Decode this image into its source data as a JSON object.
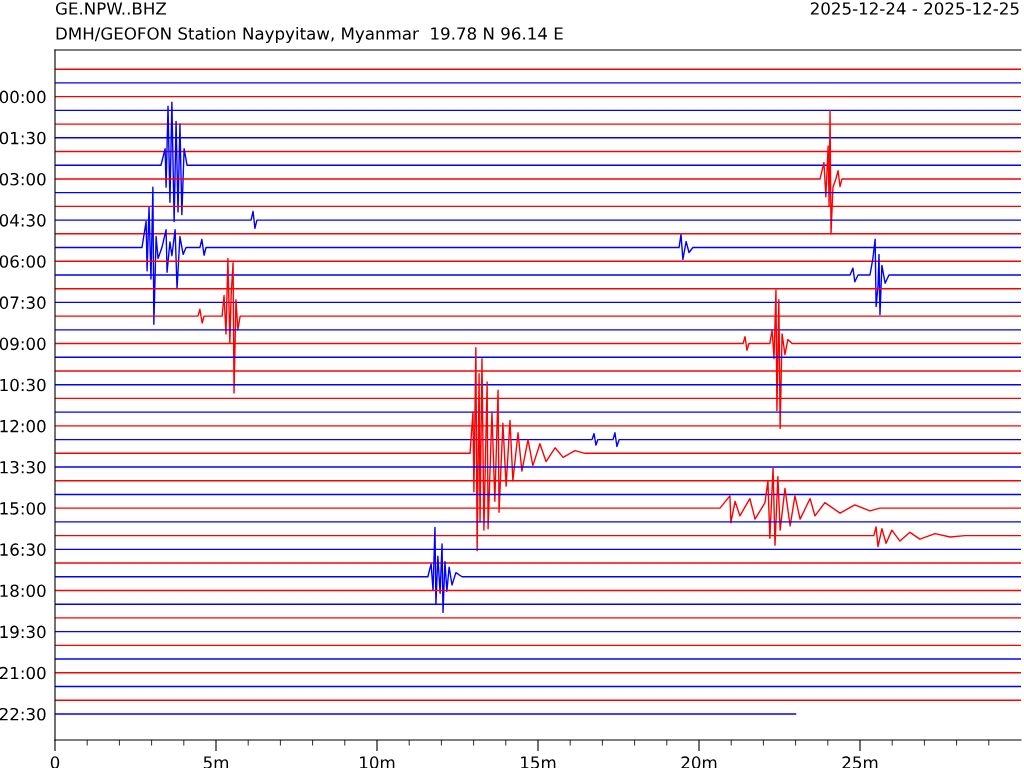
{
  "chart_data": {
    "type": "line",
    "title": "GE.NPW..BHZ",
    "subtitle": "DMH/GEOFON Station Naypyitaw, Myanmar  19.78 N 96.14 E",
    "annotations": [
      "2025-12-24 - 2025-12-25"
    ],
    "xlim": [
      0,
      30
    ],
    "ylim": [
      23.45,
      -1.7
    ],
    "grid": false,
    "legend": false,
    "marker": "none",
    "line_style": "solid",
    "xticks": [
      0,
      {
        "value": 1,
        "label": null
      },
      {
        "value": 2,
        "label": null
      },
      {
        "value": 3,
        "label": null
      },
      {
        "value": 4,
        "label": null
      },
      {
        "value": 5,
        "label": "5m"
      },
      {
        "value": 6,
        "label": null
      },
      {
        "value": 7,
        "label": null
      },
      {
        "value": 8,
        "label": null
      },
      {
        "value": 9,
        "label": null
      },
      {
        "value": 10,
        "label": "10m"
      },
      {
        "value": 11,
        "label": null
      },
      {
        "value": 12,
        "label": null
      },
      {
        "value": 13,
        "label": null
      },
      {
        "value": 14,
        "label": null
      },
      {
        "value": 15,
        "label": "15m"
      },
      {
        "value": 16,
        "label": null
      },
      {
        "value": 17,
        "label": null
      },
      {
        "value": 18,
        "label": null
      },
      {
        "value": 19,
        "label": null
      },
      {
        "value": 20,
        "label": "20m"
      },
      {
        "value": 21,
        "label": null
      },
      {
        "value": 22,
        "label": null
      },
      {
        "value": 23,
        "label": null
      },
      {
        "value": 24,
        "label": null
      },
      {
        "value": 25,
        "label": "25m"
      },
      {
        "value": 26,
        "label": null
      },
      {
        "value": 27,
        "label": null
      },
      {
        "value": 28,
        "label": null
      },
      {
        "value": 29,
        "label": null
      }
    ],
    "yticks": [
      {
        "value": 0,
        "label": "00:00"
      },
      {
        "value": 1.5,
        "label": "01:30"
      },
      {
        "value": 3,
        "label": "03:00"
      },
      {
        "value": 4.5,
        "label": "04:30"
      },
      {
        "value": 6,
        "label": "06:00"
      },
      {
        "value": 7.5,
        "label": "07:30"
      },
      {
        "value": 9,
        "label": "09:00"
      },
      {
        "value": 10.5,
        "label": "10:30"
      },
      {
        "value": 12,
        "label": "12:00"
      },
      {
        "value": 13.5,
        "label": "13:30"
      },
      {
        "value": 15,
        "label": "15:00"
      },
      {
        "value": 16.5,
        "label": "16:30"
      },
      {
        "value": 18,
        "label": "18:00"
      },
      {
        "value": 19.5,
        "label": "19:30"
      },
      {
        "value": 21,
        "label": "21:00"
      },
      {
        "value": 22.5,
        "label": "22:30"
      }
    ],
    "series": [
      {
        "color": "#ff0000",
        "x": [
          0,
          30
        ],
        "values": [
          -1,
          -1
        ]
      },
      {
        "color": "#0000ff",
        "x": [
          0,
          30
        ],
        "values": [
          -0.5,
          -0.5
        ]
      },
      {
        "color": "#ff0000",
        "x": [
          0,
          30
        ],
        "values": [
          0,
          0
        ]
      },
      {
        "color": "#0000ff",
        "x": [
          0,
          30
        ],
        "values": [
          0.5,
          0.5
        ]
      },
      {
        "color": "#ff0000",
        "x": [
          0,
          30
        ],
        "values": [
          1,
          1
        ]
      },
      {
        "color": "#0000ff",
        "x": [
          0,
          30
        ],
        "values": [
          1.5,
          1.5
        ]
      },
      {
        "color": "#ff0000",
        "x": [
          0,
          30
        ],
        "values": [
          2,
          2
        ]
      },
      {
        "color": "#0000ff",
        "x": [
          0,
          3.29,
          3.42,
          3.45,
          3.51,
          3.57,
          3.63,
          3.7,
          3.76,
          3.82,
          3.88,
          3.94,
          4.01,
          4.1,
          30
        ],
        "values": [
          2.5,
          2.5,
          1.9,
          3.3,
          0.35,
          3.85,
          0.2,
          4.55,
          0.9,
          4.2,
          1.0,
          4.3,
          1.9,
          2.5,
          2.5
        ]
      },
      {
        "color": "#ff0000",
        "x": [
          0,
          23.76,
          23.88,
          23.94,
          24.01,
          24.04,
          24.07,
          24.1,
          24.16,
          24.25,
          24.32,
          24.38,
          24.44,
          30
        ],
        "values": [
          3,
          3,
          2.4,
          3.65,
          1.8,
          4.0,
          0.5,
          5.0,
          3.3,
          3,
          2.7,
          3.28,
          3,
          3
        ]
      },
      {
        "color": "#0000ff",
        "x": [
          0,
          30
        ],
        "values": [
          3.5,
          3.5
        ]
      },
      {
        "color": "#ff0000",
        "x": [
          0,
          30
        ],
        "values": [
          4,
          4
        ]
      },
      {
        "color": "#0000ff",
        "x": [
          0,
          6.09,
          6.15,
          6.21,
          6.27,
          30
        ],
        "values": [
          4.5,
          4.5,
          4.18,
          4.8,
          4.5,
          4.5
        ]
      },
      {
        "color": "#ff0000",
        "x": [
          0,
          30
        ],
        "values": [
          5,
          5
        ]
      },
      {
        "color": "#0000ff",
        "x": [
          0,
          2.7,
          2.83,
          2.86,
          2.92,
          2.98,
          3.04,
          3.07,
          3.14,
          3.2,
          3.32,
          3.45,
          3.48,
          3.57,
          3.63,
          3.73,
          3.79,
          3.88,
          3.98,
          4.07,
          4.5,
          4.56,
          4.63,
          4.69,
          19.38,
          19.44,
          19.5,
          19.6,
          19.69,
          19.81,
          20.03,
          30
        ],
        "values": [
          5.5,
          5.5,
          4.55,
          6.35,
          4.03,
          6.65,
          3.3,
          8.3,
          5.1,
          5.9,
          5.5,
          4.85,
          6.4,
          5.3,
          5.8,
          4.85,
          7.0,
          5.1,
          5.75,
          5.5,
          5.5,
          5.2,
          5.78,
          5.5,
          5.5,
          5.03,
          5.93,
          5.28,
          5.68,
          5.5,
          5.5,
          5.5
        ]
      },
      {
        "color": "#ff0000",
        "x": [
          0,
          30
        ],
        "values": [
          6,
          6
        ]
      },
      {
        "color": "#0000ff",
        "x": [
          0,
          24.69,
          24.78,
          24.84,
          24.94,
          25.31,
          25.4,
          25.47,
          25.5,
          25.56,
          25.59,
          25.62,
          25.68,
          25.78,
          25.9,
          30
        ],
        "values": [
          6.5,
          6.5,
          6.25,
          6.75,
          6.5,
          6.5,
          5.9,
          5.2,
          7.65,
          6.9,
          5.75,
          7.95,
          6.15,
          6.8,
          6.5,
          6.5
        ]
      },
      {
        "color": "#ff0000",
        "x": [
          0,
          30
        ],
        "values": [
          7,
          7
        ]
      },
      {
        "color": "#0000ff",
        "x": [
          0,
          30
        ],
        "values": [
          7.5,
          7.5
        ]
      },
      {
        "color": "#ff0000",
        "x": [
          0,
          4.44,
          4.5,
          4.57,
          4.63,
          5.19,
          5.25,
          5.31,
          5.37,
          5.43,
          5.47,
          5.53,
          5.56,
          5.62,
          5.68,
          5.75,
          30
        ],
        "values": [
          8,
          8,
          7.75,
          8.25,
          8,
          8,
          7.25,
          8.65,
          5.9,
          9.0,
          7.25,
          6.05,
          10.8,
          7.4,
          8.5,
          8,
          8
        ]
      },
      {
        "color": "#0000ff",
        "x": [
          0,
          30
        ],
        "values": [
          8.5,
          8.5
        ]
      },
      {
        "color": "#ff0000",
        "x": [
          0,
          21.37,
          21.43,
          21.49,
          21.55,
          22.2,
          22.27,
          22.33,
          22.39,
          22.42,
          22.48,
          22.52,
          22.58,
          22.67,
          22.76,
          22.89,
          30
        ],
        "values": [
          9,
          9,
          8.75,
          9.25,
          9,
          9,
          8.5,
          9.55,
          7.05,
          11.45,
          7.4,
          12.1,
          8.65,
          9.4,
          8.85,
          9,
          9
        ]
      },
      {
        "color": "#0000ff",
        "x": [
          0,
          30
        ],
        "values": [
          9.5,
          9.5
        ]
      },
      {
        "color": "#ff0000",
        "x": [
          0,
          30
        ],
        "values": [
          10,
          10
        ]
      },
      {
        "color": "#0000ff",
        "x": [
          0,
          30
        ],
        "values": [
          10.5,
          10.5
        ]
      },
      {
        "color": "#ff0000",
        "x": [
          0,
          30
        ],
        "values": [
          11,
          11
        ]
      },
      {
        "color": "#0000ff",
        "x": [
          0,
          30
        ],
        "values": [
          11.5,
          11.5
        ]
      },
      {
        "color": "#ff0000",
        "x": [
          0,
          30
        ],
        "values": [
          12,
          12
        ]
      },
      {
        "color": "#0000ff",
        "x": [
          0,
          16.68,
          16.74,
          16.8,
          16.86,
          17.33,
          17.39,
          17.45,
          17.52,
          30
        ],
        "values": [
          12.5,
          12.5,
          12.28,
          12.7,
          12.5,
          12.5,
          12.25,
          12.75,
          12.5,
          12.5
        ]
      },
      {
        "color": "#ff0000",
        "x": [
          0,
          12.89,
          12.98,
          13.01,
          13.07,
          13.11,
          13.17,
          13.2,
          13.26,
          13.32,
          13.42,
          13.45,
          13.57,
          13.66,
          13.76,
          13.79,
          13.91,
          14.01,
          14.13,
          14.22,
          14.38,
          14.5,
          14.69,
          14.84,
          15.06,
          15.25,
          15.53,
          15.78,
          16.15,
          16.46,
          30
        ],
        "values": [
          13,
          13,
          11.5,
          14.4,
          9.15,
          16.55,
          10.1,
          15.5,
          9.55,
          15.8,
          10.4,
          15.75,
          11.5,
          14.75,
          10.7,
          15.15,
          11.9,
          14.2,
          11.8,
          14.0,
          12.25,
          13.65,
          12.5,
          13.45,
          12.65,
          13.3,
          12.8,
          13.15,
          12.9,
          13,
          13
        ]
      },
      {
        "color": "#0000ff",
        "x": [
          0,
          30
        ],
        "values": [
          13.5,
          13.5
        ]
      },
      {
        "color": "#ff0000",
        "x": [
          0,
          30
        ],
        "values": [
          14,
          14
        ]
      },
      {
        "color": "#0000ff",
        "x": [
          0,
          30
        ],
        "values": [
          14.5,
          14.5
        ]
      },
      {
        "color": "#ff0000",
        "x": [
          0,
          20.65,
          20.96,
          20.99,
          21.12,
          21.27,
          21.58,
          21.74,
          22.05,
          22.14,
          22.2,
          22.3,
          22.36,
          22.45,
          22.52,
          22.67,
          22.83,
          22.98,
          23.14,
          23.45,
          23.6,
          23.91,
          24.38,
          24.84,
          25.31,
          25.62,
          30
        ],
        "values": [
          15,
          15,
          14.55,
          15.53,
          14.75,
          15.28,
          14.65,
          15.4,
          14.8,
          14.0,
          16.1,
          13.53,
          16.35,
          13.85,
          15.8,
          14.28,
          15.65,
          14.55,
          15.4,
          14.65,
          15.28,
          14.8,
          15.18,
          14.88,
          15.1,
          15,
          15
        ]
      },
      {
        "color": "#0000ff",
        "x": [
          0,
          30
        ],
        "values": [
          15.5,
          15.5
        ]
      },
      {
        "color": "#ff0000",
        "x": [
          0,
          25.43,
          25.5,
          25.56,
          25.68,
          25.81,
          25.99,
          26.24,
          26.55,
          26.86,
          27.33,
          27.8,
          28.26,
          30
        ],
        "values": [
          16,
          16,
          15.68,
          16.4,
          15.75,
          16.28,
          15.8,
          16.2,
          15.88,
          16.13,
          15.93,
          16.05,
          16,
          16
        ]
      },
      {
        "color": "#0000ff",
        "x": [
          0,
          30
        ],
        "values": [
          16.5,
          16.5
        ]
      },
      {
        "color": "#ff0000",
        "x": [
          0,
          30
        ],
        "values": [
          17,
          17
        ]
      },
      {
        "color": "#0000ff",
        "x": [
          0,
          11.58,
          11.68,
          11.74,
          11.8,
          11.83,
          11.89,
          11.96,
          12.02,
          12.05,
          12.11,
          12.17,
          12.24,
          12.33,
          12.45,
          12.64,
          30
        ],
        "values": [
          17.5,
          17.5,
          17.03,
          17.99,
          15.7,
          18.5,
          16.75,
          18.1,
          16.3,
          18.8,
          16.95,
          18.03,
          17.15,
          17.8,
          17.35,
          17.5,
          17.5
        ]
      },
      {
        "color": "#ff0000",
        "x": [
          0,
          30
        ],
        "values": [
          18,
          18
        ]
      },
      {
        "color": "#0000ff",
        "x": [
          0,
          30
        ],
        "values": [
          18.5,
          18.5
        ]
      },
      {
        "color": "#ff0000",
        "x": [
          0,
          30
        ],
        "values": [
          19,
          19
        ]
      },
      {
        "color": "#0000ff",
        "x": [
          0,
          30
        ],
        "values": [
          19.5,
          19.5
        ]
      },
      {
        "color": "#ff0000",
        "x": [
          0,
          30
        ],
        "values": [
          20,
          20
        ]
      },
      {
        "color": "#0000ff",
        "x": [
          0,
          30
        ],
        "values": [
          20.5,
          20.5
        ]
      },
      {
        "color": "#ff0000",
        "x": [
          0,
          30
        ],
        "values": [
          21,
          21
        ]
      },
      {
        "color": "#0000ff",
        "x": [
          0,
          30
        ],
        "values": [
          21.5,
          21.5
        ]
      },
      {
        "color": "#ff0000",
        "x": [
          0,
          30
        ],
        "values": [
          22,
          22
        ]
      },
      {
        "color": "#0000ff",
        "x": [
          0,
          23.0
        ],
        "values": [
          22.5,
          22.5
        ]
      }
    ]
  }
}
